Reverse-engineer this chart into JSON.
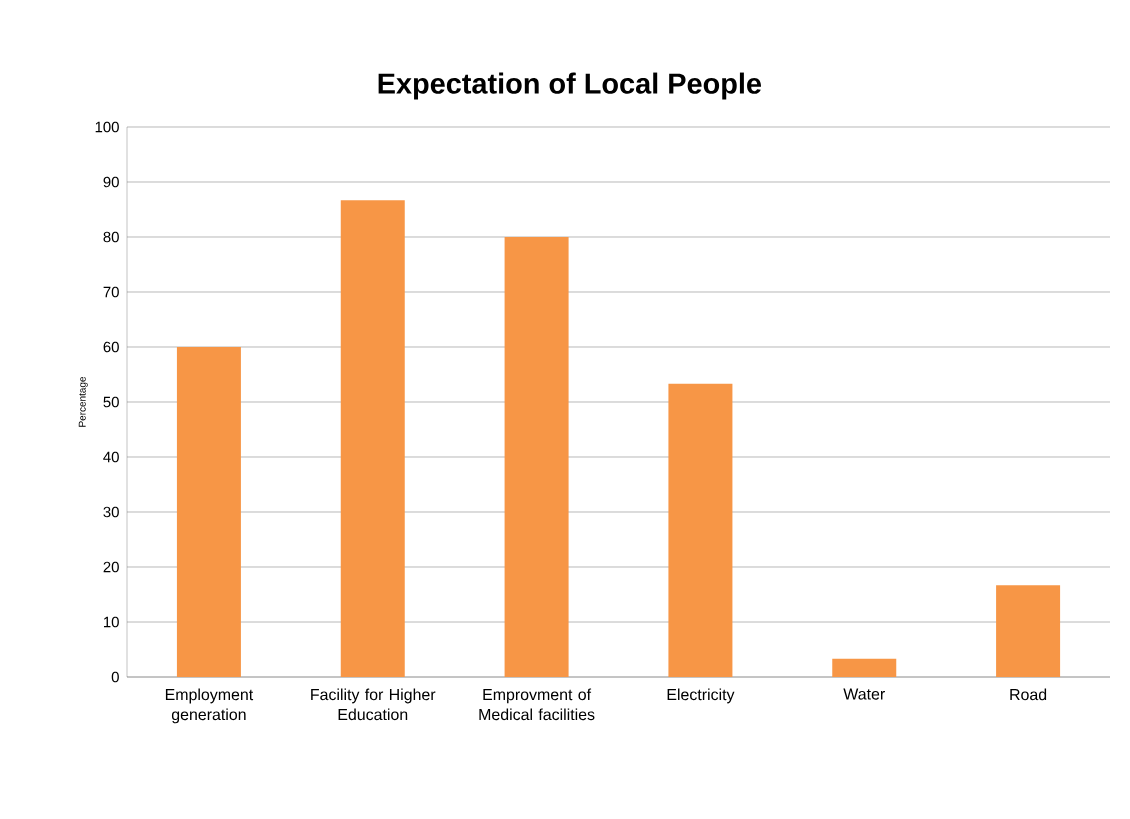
{
  "chart_data": {
    "type": "bar",
    "title": "Expectation of Local People",
    "ylabel": "Percentage",
    "categories": [
      "Employment generation",
      "Facility for Higher Education",
      "Emprovment of Medical facilities",
      "Electricity",
      "Water",
      "Road"
    ],
    "values": [
      60,
      86.7,
      80,
      53.3,
      3.3,
      16.7
    ],
    "color": "#f79646",
    "ylim": [
      0,
      100
    ],
    "yticks": [
      0,
      10,
      20,
      30,
      40,
      50,
      60,
      70,
      80,
      90,
      100
    ],
    "grid": "y"
  }
}
